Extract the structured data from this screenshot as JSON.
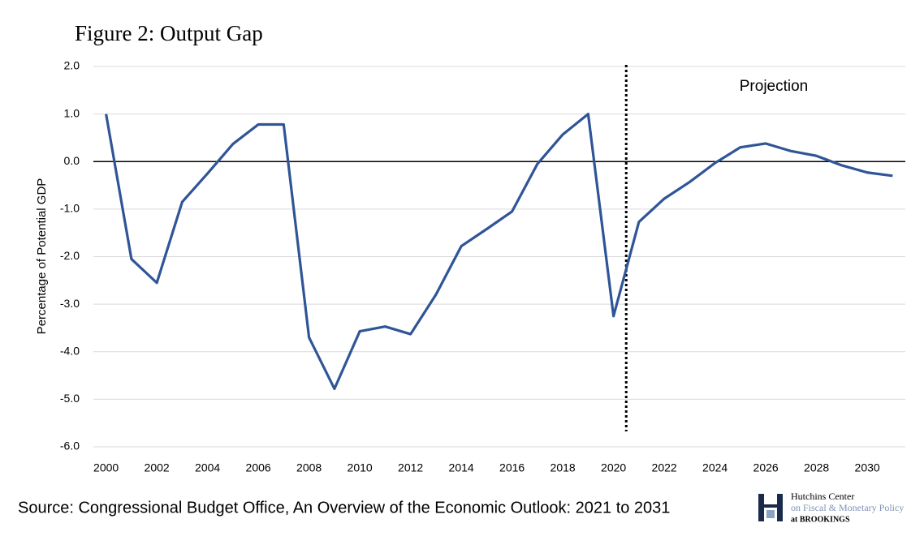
{
  "chart_data": {
    "type": "line",
    "title": "Figure 2: Output Gap",
    "y_label": "Percentage of Potential GDP",
    "x": [
      2000,
      2001,
      2002,
      2003,
      2004,
      2005,
      2006,
      2007,
      2008,
      2009,
      2010,
      2011,
      2012,
      2013,
      2014,
      2015,
      2016,
      2017,
      2018,
      2019,
      2020,
      2021,
      2022,
      2023,
      2024,
      2025,
      2026,
      2027,
      2028,
      2029,
      2030,
      2031
    ],
    "series": [
      {
        "name": "Output Gap",
        "color": "#2f5597",
        "values": [
          1.0,
          -2.05,
          -2.55,
          -0.85,
          -0.25,
          0.37,
          0.78,
          0.78,
          -3.7,
          -4.78,
          -3.57,
          -3.47,
          -3.63,
          -2.8,
          -1.78,
          -1.42,
          -1.05,
          -0.05,
          0.57,
          1.0,
          -3.25,
          -1.27,
          -0.78,
          -0.43,
          -0.03,
          0.3,
          0.38,
          0.22,
          0.12,
          -0.08,
          -0.23,
          -0.3
        ]
      }
    ],
    "xlim": [
      1999.5,
      2031.5
    ],
    "xticks": [
      2000,
      2002,
      2004,
      2006,
      2008,
      2010,
      2012,
      2014,
      2016,
      2018,
      2020,
      2022,
      2024,
      2026,
      2028,
      2030
    ],
    "ylim": [
      -6,
      2
    ],
    "yticks": [
      {
        "value": 2,
        "label": "2.0"
      },
      {
        "value": 1,
        "label": "1.0"
      },
      {
        "value": 0,
        "label": "0.0"
      },
      {
        "value": -1,
        "label": "-1.0"
      },
      {
        "value": -2,
        "label": "-2.0"
      },
      {
        "value": -3,
        "label": "-3.0"
      },
      {
        "value": -4,
        "label": "-4.0"
      },
      {
        "value": -5,
        "label": "-5.0"
      },
      {
        "value": -6,
        "label": "-6.0"
      }
    ],
    "grid": true,
    "projection_start": 2020.5,
    "annotation": "Projection",
    "source": "Source: Congressional Budget Office, An Overview of the Economic Outlook: 2021 to 2031",
    "logo": [
      "Hutchins Center",
      "on Fiscal & Monetary Policy",
      "at BROOKINGS"
    ]
  }
}
